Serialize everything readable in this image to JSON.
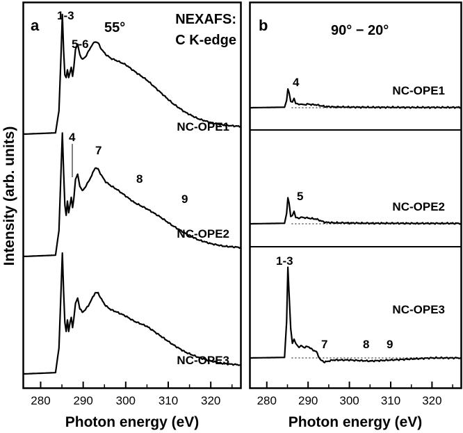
{
  "figure": {
    "ylabel": "Intensity (arb. units)"
  },
  "chart_data": [
    {
      "panel": "a",
      "type": "line",
      "title": "NEXAFS:\nC K-edge",
      "angle_label": "55°",
      "xlabel": "Photon energy (eV)",
      "ylabel": "Intensity (arb. units)",
      "xlim": [
        276,
        327
      ],
      "xticks": [
        280,
        290,
        300,
        310,
        320
      ],
      "series": [
        {
          "name": "NC-OPE1",
          "x": [
            276,
            283.5,
            284.3,
            284.8,
            285.1,
            285.4,
            285.7,
            286.0,
            286.3,
            286.6,
            286.9,
            287.2,
            287.5,
            287.8,
            288.2,
            288.7,
            289.2,
            289.8,
            290.5,
            291.2,
            292.0,
            292.8,
            293.5,
            294.3,
            295.3,
            296.5,
            298,
            300,
            302,
            305,
            308,
            311,
            314,
            317,
            320,
            323,
            327
          ],
          "y": [
            0.0,
            0.01,
            0.18,
            0.62,
            0.93,
            0.65,
            0.46,
            0.44,
            0.5,
            0.44,
            0.48,
            0.52,
            0.45,
            0.52,
            0.66,
            0.7,
            0.62,
            0.58,
            0.6,
            0.64,
            0.69,
            0.72,
            0.71,
            0.66,
            0.62,
            0.59,
            0.57,
            0.54,
            0.49,
            0.42,
            0.33,
            0.24,
            0.17,
            0.12,
            0.09,
            0.07,
            0.06
          ]
        },
        {
          "name": "NC-OPE2",
          "x": [
            276,
            283.5,
            284.3,
            284.8,
            285.1,
            285.4,
            285.7,
            286.0,
            286.3,
            286.6,
            286.9,
            287.2,
            287.5,
            287.8,
            288.2,
            288.7,
            289.2,
            289.8,
            290.5,
            291.2,
            292.0,
            292.8,
            293.5,
            294.3,
            295.3,
            296.5,
            298,
            300,
            302,
            305,
            308,
            311,
            314,
            317,
            320,
            323,
            327
          ],
          "y": [
            0.0,
            0.01,
            0.2,
            0.67,
            0.96,
            0.66,
            0.4,
            0.32,
            0.43,
            0.34,
            0.4,
            0.46,
            0.38,
            0.45,
            0.6,
            0.64,
            0.55,
            0.51,
            0.54,
            0.58,
            0.63,
            0.69,
            0.68,
            0.63,
            0.58,
            0.55,
            0.52,
            0.47,
            0.42,
            0.37,
            0.31,
            0.24,
            0.18,
            0.13,
            0.1,
            0.08,
            0.07
          ]
        },
        {
          "name": "NC-OPE3",
          "x": [
            276,
            283.5,
            284.3,
            284.8,
            285.1,
            285.4,
            285.7,
            286.0,
            286.3,
            286.6,
            286.9,
            287.2,
            287.5,
            287.8,
            288.2,
            288.7,
            289.2,
            289.8,
            290.5,
            291.2,
            292.0,
            292.8,
            293.5,
            294.3,
            295.3,
            296.5,
            298,
            300,
            302,
            305,
            308,
            311,
            314,
            317,
            320,
            323,
            327
          ],
          "y": [
            0.0,
            0.01,
            0.2,
            0.65,
            0.94,
            0.64,
            0.4,
            0.33,
            0.42,
            0.33,
            0.4,
            0.44,
            0.36,
            0.43,
            0.55,
            0.59,
            0.51,
            0.48,
            0.5,
            0.53,
            0.58,
            0.63,
            0.63,
            0.58,
            0.53,
            0.5,
            0.48,
            0.45,
            0.41,
            0.37,
            0.3,
            0.23,
            0.17,
            0.13,
            0.1,
            0.08,
            0.07
          ]
        }
      ],
      "annotations": {
        "peak_13": "1-3",
        "peak_56": "5-6",
        "peak_4": "4",
        "peak_7": "7",
        "peak_8": "8",
        "peak_9": "9"
      }
    },
    {
      "panel": "b",
      "type": "line",
      "title": "90° − 20°",
      "xlabel": "Photon energy (eV)",
      "xlim": [
        276,
        327
      ],
      "xticks": [
        280,
        290,
        300,
        310,
        320
      ],
      "series": [
        {
          "name": "NC-OPE1",
          "x": [
            276,
            284.3,
            284.8,
            285.1,
            285.4,
            285.8,
            286.2,
            286.6,
            287.0,
            287.4,
            287.8,
            288.3,
            289,
            290,
            291,
            292,
            293,
            294,
            296,
            300,
            305,
            310,
            315,
            320,
            327
          ],
          "y": [
            0.0,
            0.005,
            0.07,
            0.18,
            0.145,
            0.06,
            0.055,
            0.09,
            0.04,
            0.04,
            0.03,
            0.035,
            0.03,
            0.035,
            0.03,
            0.028,
            0.02,
            0.012,
            0.008,
            0.006,
            0.004,
            0.004,
            0.003,
            0.003,
            0.003
          ]
        },
        {
          "name": "NC-OPE2",
          "x": [
            276,
            284.3,
            284.8,
            285.1,
            285.4,
            285.8,
            286.2,
            286.6,
            287.0,
            287.4,
            287.8,
            288.3,
            289,
            290,
            291,
            292,
            293,
            294,
            296,
            300,
            305,
            310,
            315,
            320,
            327
          ],
          "y": [
            0.0,
            0.005,
            0.1,
            0.25,
            0.2,
            0.07,
            0.08,
            0.12,
            0.06,
            0.06,
            0.05,
            0.065,
            0.06,
            0.055,
            0.05,
            0.045,
            0.03,
            0.015,
            0.01,
            0.008,
            0.005,
            0.005,
            0.004,
            0.004,
            0.004
          ]
        },
        {
          "name": "NC-OPE3",
          "x": [
            276,
            284.3,
            284.8,
            285.1,
            285.4,
            285.8,
            286.2,
            286.6,
            287.0,
            287.4,
            287.8,
            288.3,
            289,
            290,
            291,
            292,
            293,
            294,
            296,
            300,
            305,
            310,
            315,
            320,
            327
          ],
          "y": [
            0.0,
            0.005,
            0.35,
            0.87,
            0.62,
            0.28,
            0.14,
            0.18,
            0.14,
            0.12,
            0.1,
            0.12,
            0.1,
            0.11,
            0.08,
            0.06,
            -0.02,
            -0.04,
            -0.02,
            -0.02,
            -0.03,
            -0.02,
            -0.01,
            0.0,
            0.0
          ]
        }
      ],
      "annotations": {
        "peak_4": "4",
        "peak_5": "5",
        "peak_13": "1-3",
        "peak_7": "7",
        "peak_8": "8",
        "peak_9": "9"
      },
      "baseline": "dotted"
    }
  ]
}
